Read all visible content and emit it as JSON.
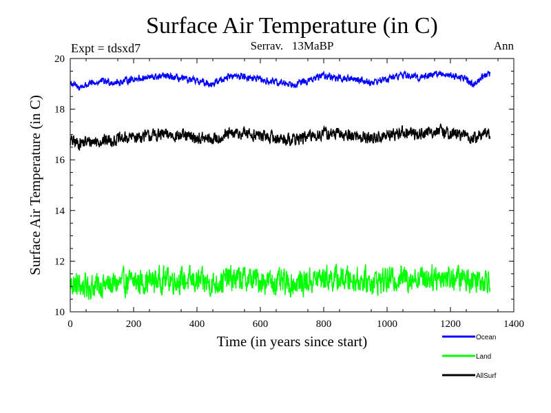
{
  "chart_data": {
    "type": "line",
    "title": "Surface Air Temperature (in C)",
    "subtitle_left": "Expt = tdsxd7",
    "subtitle_center": "Serrav.   13MaBP",
    "subtitle_right": "Ann",
    "xlabel": "Time (in years since start)",
    "ylabel": "Surface Air Temperature (in C)",
    "xlim": [
      0,
      1400
    ],
    "ylim": [
      10,
      20
    ],
    "x_ticks": [
      0,
      200,
      400,
      600,
      800,
      1000,
      1200,
      1400
    ],
    "y_ticks": [
      10,
      12,
      14,
      16,
      18,
      20
    ],
    "x_tick_labels": [
      "0",
      "200",
      "400",
      "600",
      "800",
      "1000",
      "1200",
      "1400"
    ],
    "y_tick_labels": [
      "10",
      "12",
      "14",
      "16",
      "18",
      "20"
    ],
    "x_end": 1325,
    "legend_position": "bottom-right",
    "series": [
      {
        "name": "Ocean",
        "color": "#0000ff",
        "x": [
          0,
          25,
          50,
          100,
          150,
          200,
          250,
          300,
          350,
          400,
          450,
          500,
          550,
          600,
          650,
          700,
          750,
          800,
          850,
          900,
          950,
          1000,
          1050,
          1100,
          1150,
          1200,
          1250,
          1270,
          1300,
          1325
        ],
        "y": [
          19.05,
          18.85,
          18.95,
          19.1,
          19.05,
          19.2,
          19.25,
          19.3,
          19.2,
          19.1,
          19.0,
          19.3,
          19.3,
          19.15,
          19.05,
          19.0,
          19.1,
          19.35,
          19.2,
          19.2,
          19.05,
          19.2,
          19.35,
          19.25,
          19.4,
          19.35,
          19.2,
          18.95,
          19.3,
          19.35
        ],
        "noise": 0.12
      },
      {
        "name": "Land",
        "color": "#00ff00",
        "x": [
          0,
          50,
          100,
          150,
          200,
          250,
          300,
          350,
          400,
          450,
          500,
          550,
          600,
          650,
          700,
          750,
          800,
          850,
          900,
          950,
          1000,
          1050,
          1100,
          1150,
          1200,
          1250,
          1300,
          1325
        ],
        "y": [
          11.1,
          11.0,
          11.05,
          11.1,
          11.2,
          11.2,
          11.3,
          11.25,
          11.2,
          11.1,
          11.3,
          11.3,
          11.25,
          11.15,
          11.1,
          11.2,
          11.35,
          11.3,
          11.3,
          11.2,
          11.25,
          11.35,
          11.35,
          11.4,
          11.35,
          11.3,
          11.3,
          11.35
        ],
        "noise": 0.45
      },
      {
        "name": "AllSurf",
        "color": "#000000",
        "x": [
          0,
          25,
          50,
          100,
          150,
          200,
          250,
          300,
          350,
          400,
          450,
          500,
          550,
          600,
          650,
          700,
          750,
          800,
          850,
          900,
          950,
          1000,
          1050,
          1100,
          1150,
          1200,
          1250,
          1270,
          1300,
          1325
        ],
        "y": [
          16.75,
          16.65,
          16.7,
          16.75,
          16.8,
          16.9,
          16.95,
          17.0,
          16.95,
          16.85,
          16.8,
          17.0,
          17.05,
          16.95,
          16.85,
          16.8,
          16.9,
          17.05,
          17.0,
          16.95,
          16.85,
          16.95,
          17.1,
          17.0,
          17.15,
          17.05,
          16.95,
          16.8,
          17.0,
          17.05
        ],
        "noise": 0.22
      }
    ]
  }
}
